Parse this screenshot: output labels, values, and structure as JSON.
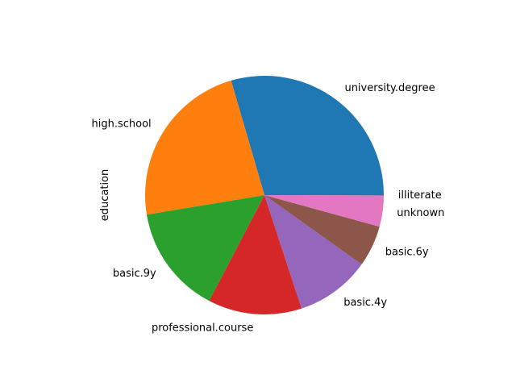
{
  "chart_data": {
    "type": "pie",
    "title": "",
    "ylabel": "education",
    "categories": [
      "university.degree",
      "high.school",
      "basic.9y",
      "professional.course",
      "basic.4y",
      "basic.6y",
      "unknown",
      "illiterate"
    ],
    "values": [
      29.5,
      23.1,
      14.7,
      12.7,
      10.1,
      5.6,
      4.2,
      0.05
    ],
    "colors": [
      "#1f77b4",
      "#ff7f0e",
      "#2ca02c",
      "#d62728",
      "#9467bd",
      "#8c564b",
      "#e377c2",
      "#7f7f7f"
    ],
    "start_angle": "0",
    "direction": "counterclockwise",
    "legend": "none"
  }
}
